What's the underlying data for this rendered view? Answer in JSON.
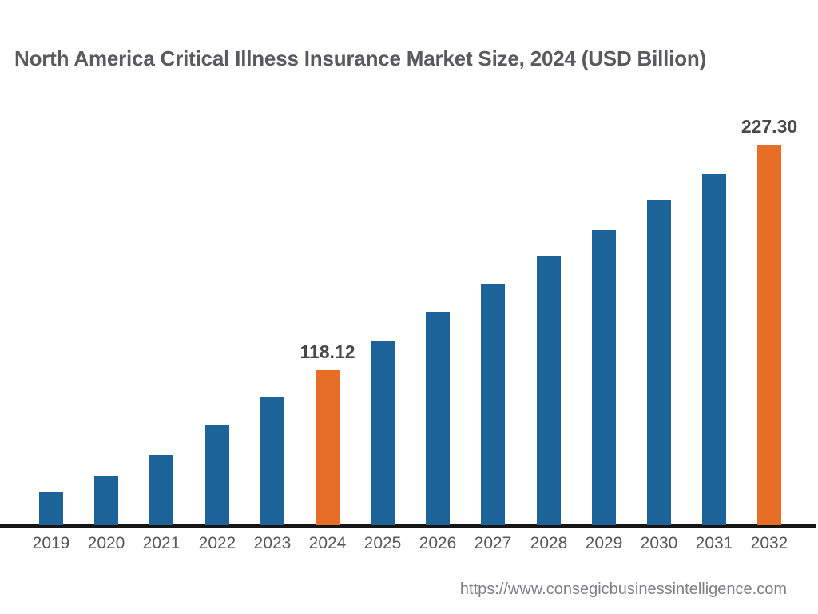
{
  "title": "North America Critical Illness Insurance Market Size, 2024 (USD Billion)",
  "source_url": "https://www.consegicbusinessintelligence.com",
  "colors": {
    "bar": "#1C6399",
    "highlight": "#E66E27",
    "axis": "#161616",
    "title_text": "#595A5D",
    "tick_text": "#57585A",
    "value_label_text": "#48494B",
    "url_text": "#7E8083",
    "background": "#FFFFFF"
  },
  "chart_data": {
    "type": "bar",
    "title": "North America Critical Illness Insurance Market Size, 2024 (USD Billion)",
    "xlabel": "",
    "ylabel": "",
    "categories": [
      "2019",
      "2020",
      "2021",
      "2022",
      "2023",
      "2024",
      "2025",
      "2026",
      "2027",
      "2028",
      "2029",
      "2030",
      "2031",
      "2032"
    ],
    "values": [
      58.9,
      67.0,
      77.1,
      91.8,
      105.3,
      118.12,
      132.1,
      146.4,
      159.9,
      173.5,
      185.9,
      200.6,
      213.0,
      227.3
    ],
    "data_labels": {
      "2024": "118.12",
      "2032": "227.30"
    },
    "highlighted_categories": [
      "2024",
      "2032"
    ],
    "ylim": [
      43,
      243
    ],
    "grid": false,
    "legend": false,
    "y_axis_visible": false,
    "x_axis_visible": true
  }
}
